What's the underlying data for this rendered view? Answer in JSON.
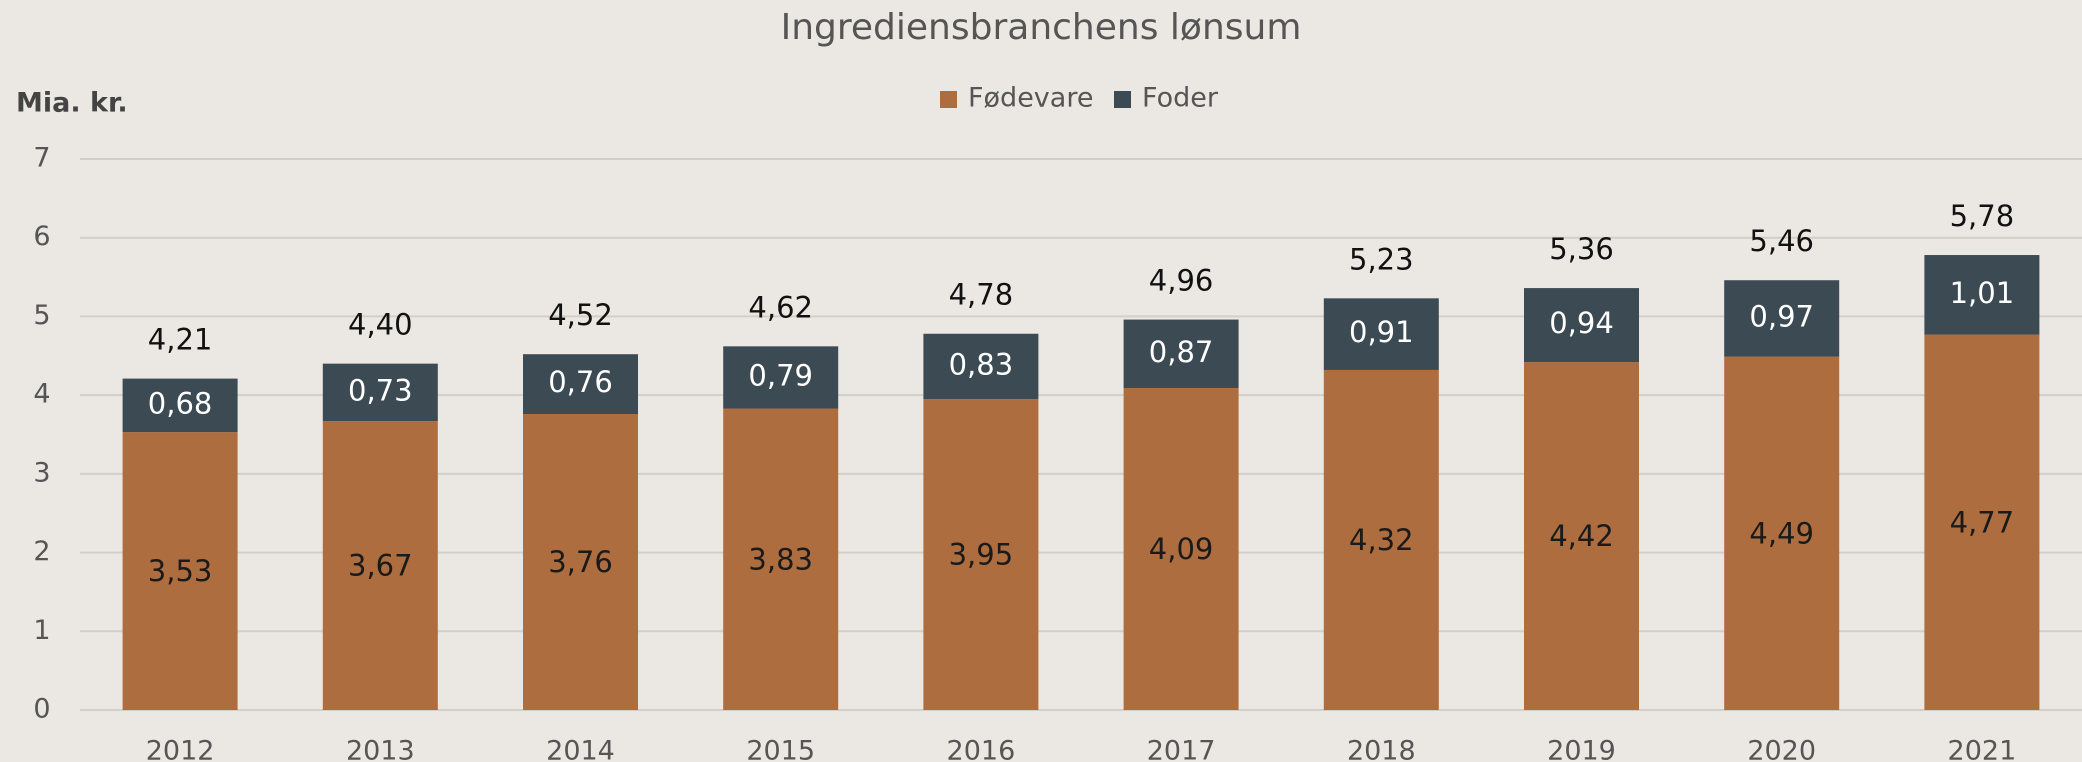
{
  "chart_data": {
    "type": "stacked_bar",
    "title": "Ingrediensbranchens lønsum",
    "y_label": "Mia. kr.",
    "categories": [
      "2012",
      "2013",
      "2014",
      "2015",
      "2016",
      "2017",
      "2018",
      "2019",
      "2020",
      "2021"
    ],
    "series": [
      {
        "name": "Fødevare",
        "color": "#ae6d3e",
        "values": [
          3.53,
          3.67,
          3.76,
          3.83,
          3.95,
          4.09,
          4.32,
          4.42,
          4.49,
          4.77
        ],
        "value_labels": [
          "3,53",
          "3,67",
          "3,76",
          "3,83",
          "3,95",
          "4,09",
          "4,32",
          "4,42",
          "4,49",
          "4,77"
        ]
      },
      {
        "name": "Foder",
        "color": "#3c4a53",
        "values": [
          0.68,
          0.73,
          0.76,
          0.79,
          0.83,
          0.87,
          0.91,
          0.94,
          0.97,
          1.01
        ],
        "value_labels": [
          "0,68",
          "0,73",
          "0,76",
          "0,79",
          "0,83",
          "0,87",
          "0,91",
          "0,94",
          "0,97",
          "1,01"
        ]
      }
    ],
    "totals": {
      "values": [
        4.21,
        4.4,
        4.52,
        4.62,
        4.78,
        4.96,
        5.23,
        5.36,
        5.46,
        5.78
      ],
      "value_labels": [
        "4,21",
        "4,40",
        "4,52",
        "4,62",
        "4,78",
        "4,96",
        "5,23",
        "5,36",
        "5,46",
        "5,78"
      ]
    },
    "ylim": [
      0,
      7
    ],
    "yticks": [
      0,
      1,
      2,
      3,
      4,
      5,
      6,
      7
    ],
    "grid": true,
    "legend": "top"
  }
}
